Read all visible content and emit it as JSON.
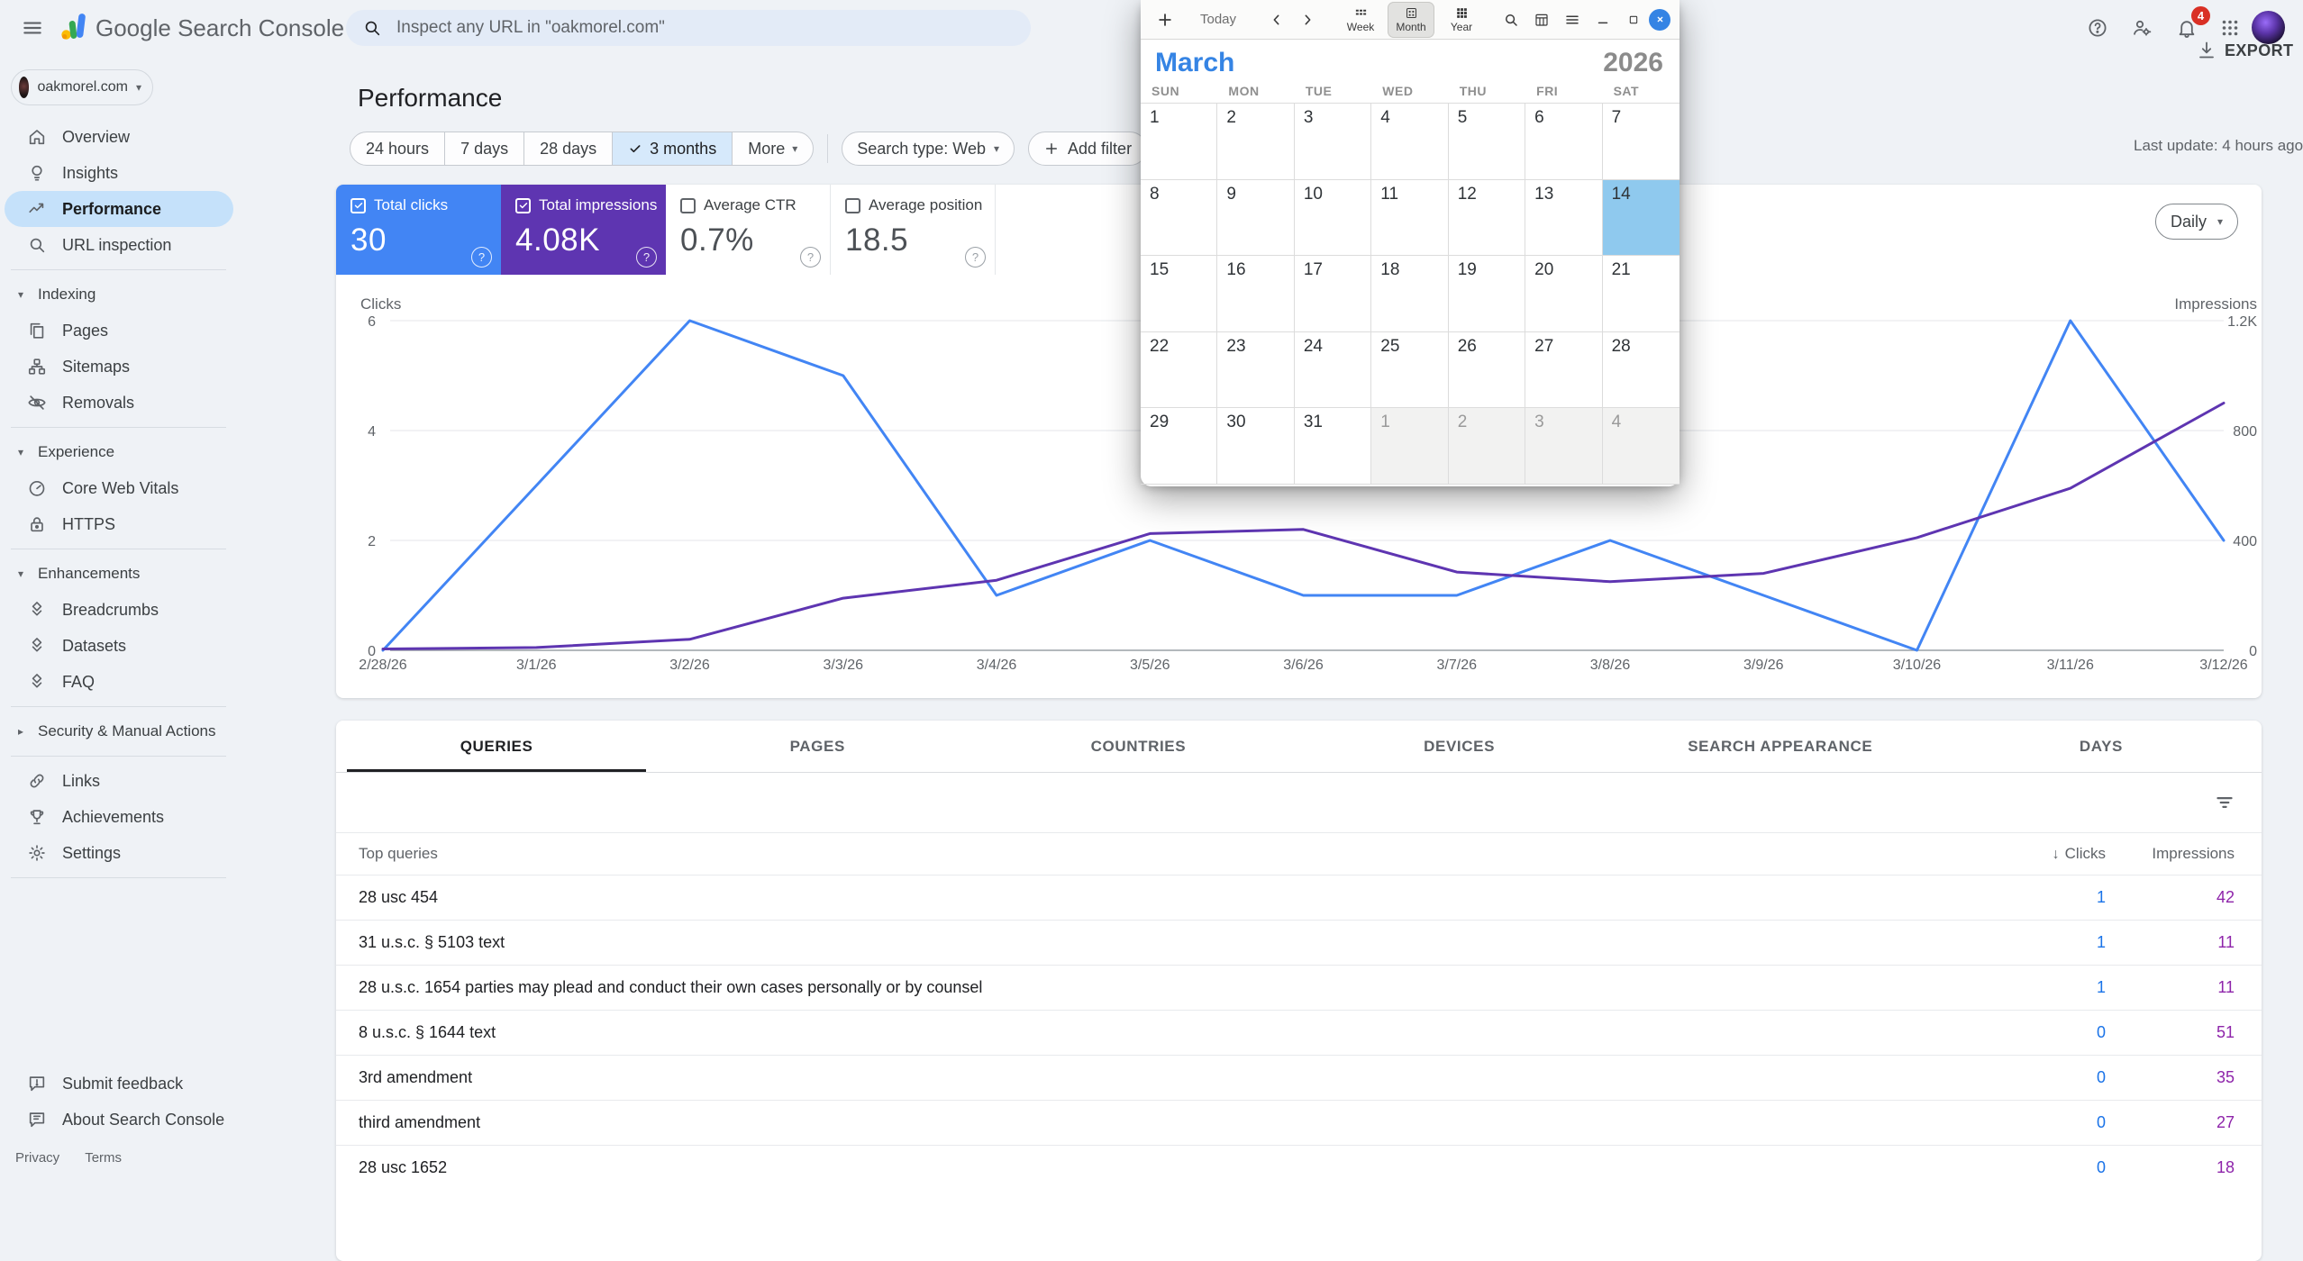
{
  "topbar": {
    "title": "Google Search Console",
    "search_placeholder": "Inspect any URL in \"oakmorel.com\"",
    "notification_count": "4"
  },
  "sidebar": {
    "property": {
      "name": "oakmorel.com"
    },
    "sections": [
      {
        "items": [
          {
            "icon": "home",
            "label": "Overview"
          },
          {
            "icon": "bulb",
            "label": "Insights"
          },
          {
            "icon": "trend",
            "label": "Performance",
            "selected": true
          },
          {
            "icon": "search",
            "label": "URL inspection"
          }
        ]
      },
      {
        "header": {
          "label": "Indexing",
          "expanded": true
        },
        "items": [
          {
            "icon": "pages",
            "label": "Pages"
          },
          {
            "icon": "sitemap",
            "label": "Sitemaps"
          },
          {
            "icon": "eye-off",
            "label": "Removals"
          }
        ]
      },
      {
        "header": {
          "label": "Experience",
          "expanded": true
        },
        "items": [
          {
            "icon": "gauge",
            "label": "Core Web Vitals"
          },
          {
            "icon": "lock",
            "label": "HTTPS"
          }
        ]
      },
      {
        "header": {
          "label": "Enhancements",
          "expanded": true
        },
        "items": [
          {
            "icon": "rich-result",
            "label": "Breadcrumbs"
          },
          {
            "icon": "rich-result",
            "label": "Datasets"
          },
          {
            "icon": "rich-result",
            "label": "FAQ"
          }
        ]
      },
      {
        "header": {
          "label": "Security & Manual Actions",
          "expanded": false
        },
        "items": []
      },
      {
        "items": [
          {
            "icon": "link",
            "label": "Links"
          },
          {
            "icon": "trophy",
            "label": "Achievements"
          },
          {
            "icon": "gear",
            "label": "Settings"
          }
        ]
      }
    ],
    "footer_items": [
      {
        "icon": "feedback",
        "label": "Submit feedback"
      },
      {
        "icon": "about",
        "label": "About Search Console"
      }
    ],
    "legal": [
      "Privacy",
      "Terms"
    ]
  },
  "page": {
    "title": "Performance",
    "last_update": "Last update: 4 hours ago",
    "export_label": "EXPORT"
  },
  "filters": {
    "date_ranges": [
      "24 hours",
      "7 days",
      "28 days",
      "3 months"
    ],
    "selected_range": "3 months",
    "more_label": "More",
    "search_type_label": "Search type: Web",
    "add_filter_label": "Add filter"
  },
  "metrics": [
    {
      "label": "Total clicks",
      "value": "30",
      "checked": true,
      "bg": "#4285f4"
    },
    {
      "label": "Total impressions",
      "value": "4.08K",
      "checked": true,
      "bg": "#5e35b1"
    },
    {
      "label": "Average CTR",
      "value": "0.7%",
      "checked": false,
      "bg": "#ffffff"
    },
    {
      "label": "Average position",
      "value": "18.5",
      "checked": false,
      "bg": "#ffffff"
    }
  ],
  "chart_data": {
    "type": "line",
    "x": [
      "2/28/26",
      "3/1/26",
      "3/2/26",
      "3/3/26",
      "3/4/26",
      "3/5/26",
      "3/6/26",
      "3/7/26",
      "3/8/26",
      "3/9/26",
      "3/10/26",
      "3/11/26",
      "3/12/26"
    ],
    "series": [
      {
        "name": "Clicks",
        "color": "#4285f4",
        "axis": "left",
        "values": [
          0,
          3,
          6,
          5,
          1,
          2,
          1,
          1,
          2,
          1,
          0,
          6,
          2
        ]
      },
      {
        "name": "Impressions",
        "color": "#5e35b1",
        "axis": "right",
        "values": [
          5,
          10,
          40,
          190,
          255,
          425,
          440,
          285,
          250,
          280,
          410,
          590,
          900
        ]
      }
    ],
    "left_axis": {
      "label": "Clicks",
      "ticks": [
        "6",
        "4",
        "2",
        "0"
      ],
      "max": 6
    },
    "right_axis": {
      "label": "Impressions",
      "ticks": [
        "1.2K",
        "800",
        "400",
        "0"
      ],
      "max": 1200
    },
    "granularity": "Daily",
    "grid": true,
    "legend_position": "none"
  },
  "tabs": [
    {
      "label": "QUERIES",
      "active": true
    },
    {
      "label": "PAGES"
    },
    {
      "label": "COUNTRIES"
    },
    {
      "label": "DEVICES"
    },
    {
      "label": "SEARCH APPEARANCE"
    },
    {
      "label": "DAYS"
    }
  ],
  "table": {
    "query_header": "Top queries",
    "clicks_header": "Clicks",
    "impressions_header": "Impressions",
    "rows": [
      {
        "query": "28 usc 454",
        "clicks": "1",
        "impressions": "42"
      },
      {
        "query": "31 u.s.c. § 5103 text",
        "clicks": "1",
        "impressions": "11"
      },
      {
        "query": "28 u.s.c. 1654 parties may plead and conduct their own cases personally or by counsel",
        "clicks": "1",
        "impressions": "11"
      },
      {
        "query": "8 u.s.c. § 1644 text",
        "clicks": "0",
        "impressions": "51"
      },
      {
        "query": "3rd amendment",
        "clicks": "0",
        "impressions": "35"
      },
      {
        "query": "third amendment",
        "clicks": "0",
        "impressions": "27"
      },
      {
        "query": "28 usc 1652",
        "clicks": "0",
        "impressions": "18"
      }
    ]
  },
  "calendar": {
    "today_label": "Today",
    "views": [
      {
        "label": "Week"
      },
      {
        "label": "Month",
        "active": true
      },
      {
        "label": "Year"
      }
    ],
    "month": "March",
    "year": "2026",
    "weekdays": [
      "SUN",
      "MON",
      "TUE",
      "WED",
      "THU",
      "FRI",
      "SAT"
    ],
    "selected_day": 14,
    "weeks": [
      [
        {
          "d": 1
        },
        {
          "d": 2
        },
        {
          "d": 3
        },
        {
          "d": 4
        },
        {
          "d": 5
        },
        {
          "d": 6
        },
        {
          "d": 7
        }
      ],
      [
        {
          "d": 8
        },
        {
          "d": 9
        },
        {
          "d": 10
        },
        {
          "d": 11
        },
        {
          "d": 12
        },
        {
          "d": 13
        },
        {
          "d": 14,
          "selected": true
        }
      ],
      [
        {
          "d": 15
        },
        {
          "d": 16
        },
        {
          "d": 17
        },
        {
          "d": 18
        },
        {
          "d": 19
        },
        {
          "d": 20
        },
        {
          "d": 21
        }
      ],
      [
        {
          "d": 22
        },
        {
          "d": 23
        },
        {
          "d": 24
        },
        {
          "d": 25
        },
        {
          "d": 26
        },
        {
          "d": 27
        },
        {
          "d": 28
        }
      ],
      [
        {
          "d": 29
        },
        {
          "d": 30
        },
        {
          "d": 31
        },
        {
          "d": 1,
          "other": true
        },
        {
          "d": 2,
          "other": true
        },
        {
          "d": 3,
          "other": true
        },
        {
          "d": 4,
          "other": true
        }
      ]
    ],
    "accent_color": "#3584e4",
    "selected_color": "#8fc9ee"
  }
}
